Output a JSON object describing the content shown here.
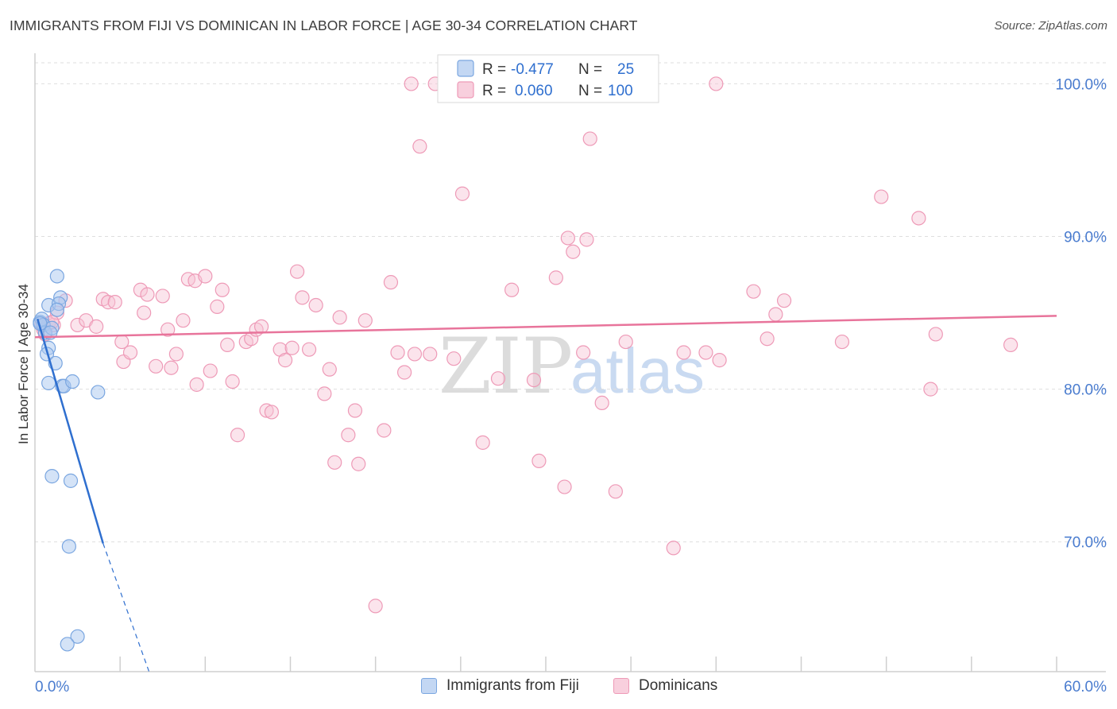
{
  "title": "IMMIGRANTS FROM FIJI VS DOMINICAN IN LABOR FORCE | AGE 30-34 CORRELATION CHART",
  "source": "Source: ZipAtlas.com",
  "watermark": {
    "zip": "ZIP",
    "atlas": "atlas"
  },
  "colors": {
    "fiji": "#7aa6e0",
    "fiji_fill": "#aac8f0",
    "fiji_line": "#2f6fcf",
    "dominican": "#ee9ab7",
    "dominican_fill": "#f6c4d5",
    "dominican_line": "#e8749b",
    "tick_label": "#4a7ccf",
    "grid": "#dedede"
  },
  "legend": {
    "fiji": {
      "r_label": "R =",
      "r_value": "-0.477",
      "n_label": "N =",
      "n_value": "25"
    },
    "dominican": {
      "r_label": "R =",
      "r_value": "0.060",
      "n_label": "N =",
      "n_value": "100"
    }
  },
  "bottom_legend": {
    "fiji": "Immigrants from Fiji",
    "dominican": "Dominicans"
  },
  "chart_data": {
    "type": "scatter",
    "title": "IMMIGRANTS FROM FIJI VS DOMINICAN IN LABOR FORCE | AGE 30-34 CORRELATION CHART",
    "xlabel": "",
    "ylabel": "In Labor Force | Age 30-34",
    "xlim": [
      0,
      60
    ],
    "ylim": [
      61.5,
      102
    ],
    "x_tick_labels": [
      {
        "value": 0,
        "label": "0.0%"
      },
      {
        "value": 60,
        "label": "60.0%"
      }
    ],
    "y_ticks": [
      {
        "value": 100,
        "label": "100.0%"
      },
      {
        "value": 90,
        "label": "90.0%"
      },
      {
        "value": 80,
        "label": "80.0%"
      },
      {
        "value": 70,
        "label": "70.0%"
      }
    ],
    "grid": true,
    "series": [
      {
        "name": "Immigrants from Fiji",
        "points": [
          [
            0.3,
            84.4
          ],
          [
            0.4,
            84.6
          ],
          [
            0.5,
            84.2
          ],
          [
            0.6,
            83.7
          ],
          [
            0.8,
            82.7
          ],
          [
            0.7,
            82.3
          ],
          [
            1.0,
            84.0
          ],
          [
            0.9,
            83.7
          ],
          [
            1.3,
            87.4
          ],
          [
            1.5,
            86.0
          ],
          [
            0.8,
            85.5
          ],
          [
            1.4,
            85.6
          ],
          [
            1.3,
            85.2
          ],
          [
            1.2,
            81.7
          ],
          [
            0.8,
            80.4
          ],
          [
            1.6,
            80.2
          ],
          [
            1.7,
            80.2
          ],
          [
            2.2,
            80.5
          ],
          [
            3.7,
            79.8
          ],
          [
            1.0,
            74.3
          ],
          [
            2.1,
            74.0
          ],
          [
            2.0,
            69.7
          ],
          [
            2.5,
            63.8
          ],
          [
            1.9,
            63.3
          ],
          [
            0.3,
            84.3
          ]
        ],
        "trend": {
          "x0": 0.15,
          "y0": 84.6,
          "x1": 4.0,
          "y1": 69.9,
          "dash_to_x": 6.7,
          "dash_to_y": 61.5
        }
      },
      {
        "name": "Dominicans",
        "points": [
          [
            0.4,
            84.2
          ],
          [
            0.5,
            83.9
          ],
          [
            0.8,
            84.3
          ],
          [
            1.1,
            84.2
          ],
          [
            1.3,
            85.0
          ],
          [
            1.8,
            85.8
          ],
          [
            2.5,
            84.2
          ],
          [
            3.0,
            84.5
          ],
          [
            3.6,
            84.1
          ],
          [
            4.0,
            85.9
          ],
          [
            4.3,
            85.7
          ],
          [
            4.7,
            85.7
          ],
          [
            5.1,
            83.1
          ],
          [
            5.2,
            81.8
          ],
          [
            5.6,
            82.4
          ],
          [
            6.2,
            86.5
          ],
          [
            6.4,
            85.0
          ],
          [
            6.6,
            86.2
          ],
          [
            7.1,
            81.5
          ],
          [
            7.5,
            86.1
          ],
          [
            7.8,
            83.9
          ],
          [
            8.0,
            81.4
          ],
          [
            8.3,
            82.3
          ],
          [
            8.7,
            84.5
          ],
          [
            9.0,
            87.2
          ],
          [
            9.4,
            87.1
          ],
          [
            9.5,
            80.3
          ],
          [
            10.0,
            87.4
          ],
          [
            10.3,
            81.2
          ],
          [
            10.7,
            85.4
          ],
          [
            11.0,
            86.5
          ],
          [
            11.3,
            82.9
          ],
          [
            11.6,
            80.5
          ],
          [
            11.9,
            77.0
          ],
          [
            12.4,
            83.1
          ],
          [
            12.7,
            83.3
          ],
          [
            13.0,
            83.9
          ],
          [
            13.3,
            84.1
          ],
          [
            13.6,
            78.6
          ],
          [
            13.9,
            78.5
          ],
          [
            14.4,
            82.6
          ],
          [
            14.7,
            81.9
          ],
          [
            15.1,
            82.7
          ],
          [
            15.4,
            87.7
          ],
          [
            15.7,
            86.0
          ],
          [
            16.1,
            82.6
          ],
          [
            16.5,
            85.5
          ],
          [
            17.0,
            79.7
          ],
          [
            17.3,
            81.3
          ],
          [
            17.6,
            75.2
          ],
          [
            17.9,
            84.7
          ],
          [
            18.4,
            77.0
          ],
          [
            18.8,
            78.6
          ],
          [
            19.0,
            75.1
          ],
          [
            19.4,
            84.5
          ],
          [
            20.0,
            65.8
          ],
          [
            20.5,
            77.3
          ],
          [
            20.9,
            87.0
          ],
          [
            21.3,
            82.4
          ],
          [
            21.7,
            81.1
          ],
          [
            22.1,
            100.0
          ],
          [
            22.3,
            82.3
          ],
          [
            22.6,
            95.9
          ],
          [
            23.2,
            82.3
          ],
          [
            23.5,
            100.0
          ],
          [
            24.6,
            82.0
          ],
          [
            25.1,
            92.8
          ],
          [
            26.3,
            76.5
          ],
          [
            27.2,
            80.7
          ],
          [
            28.0,
            86.5
          ],
          [
            28.3,
            100.0
          ],
          [
            29.3,
            80.6
          ],
          [
            29.6,
            75.3
          ],
          [
            30.6,
            87.3
          ],
          [
            31.1,
            73.6
          ],
          [
            31.3,
            89.9
          ],
          [
            31.6,
            89.0
          ],
          [
            32.2,
            82.4
          ],
          [
            32.4,
            89.8
          ],
          [
            32.6,
            96.4
          ],
          [
            33.3,
            79.1
          ],
          [
            34.1,
            73.3
          ],
          [
            34.7,
            83.1
          ],
          [
            37.5,
            69.6
          ],
          [
            38.1,
            82.4
          ],
          [
            39.4,
            82.4
          ],
          [
            40.0,
            100.0
          ],
          [
            40.2,
            81.9
          ],
          [
            42.2,
            86.4
          ],
          [
            43.0,
            83.3
          ],
          [
            43.5,
            84.9
          ],
          [
            44.0,
            85.8
          ],
          [
            47.4,
            83.1
          ],
          [
            49.7,
            92.6
          ],
          [
            51.9,
            91.2
          ],
          [
            52.6,
            80.0
          ],
          [
            52.9,
            83.6
          ],
          [
            57.3,
            82.9
          ],
          [
            0.6,
            83.6
          ],
          [
            1.0,
            84.4
          ]
        ],
        "trend": {
          "x0": 0,
          "y0": 83.4,
          "x1": 60,
          "y1": 84.8
        }
      }
    ]
  }
}
